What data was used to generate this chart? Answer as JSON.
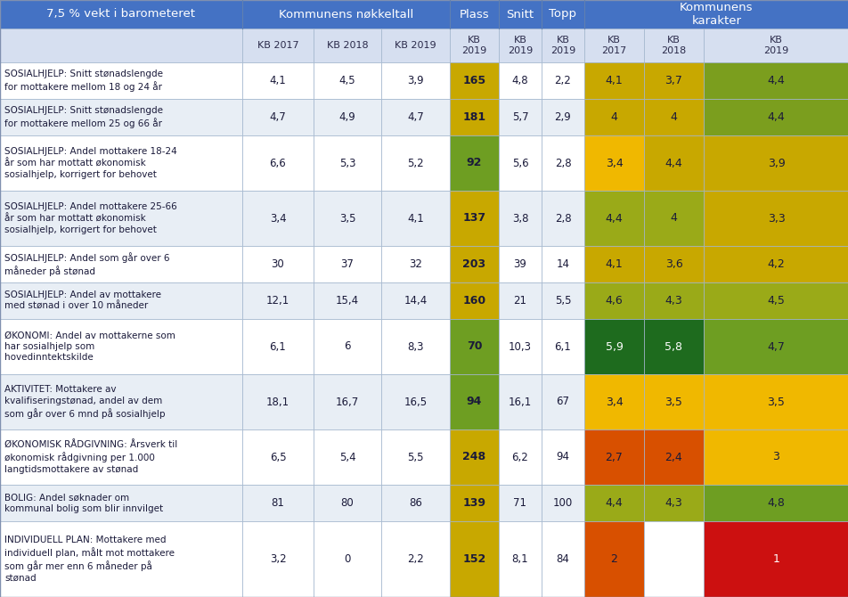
{
  "header_bg": "#4472C4",
  "header_text": "#FFFFFF",
  "subheader_bg": "#D6DFF0",
  "odd_row_bg": "#FFFFFF",
  "even_row_bg": "#E8EEF5",
  "border_color": "#A0B4CC",
  "rows": [
    {
      "label": "SOSIALHJELP: Snitt stønadslengde\nfor mottakere mellom 18 og 24 år",
      "kb2017": "4,1",
      "kb2018": "4,5",
      "kb2019": "3,9",
      "plass": "165",
      "snitt": "4,8",
      "topp": "2,2",
      "kar2017": "4,1",
      "kar2018": "3,7",
      "kar2019": "4,4",
      "plass_color": "#C8A800",
      "kar2017_color": "#C8A800",
      "kar2018_color": "#C8A800",
      "kar2019_color": "#7B9E1E"
    },
    {
      "label": "SOSIALHJELP: Snitt stønadslengde\nfor mottakere mellom 25 og 66 år",
      "kb2017": "4,7",
      "kb2018": "4,9",
      "kb2019": "4,7",
      "plass": "181",
      "snitt": "5,7",
      "topp": "2,9",
      "kar2017": "4",
      "kar2018": "4",
      "kar2019": "4,4",
      "plass_color": "#C8A800",
      "kar2017_color": "#C8A800",
      "kar2018_color": "#C8A800",
      "kar2019_color": "#7B9E1E"
    },
    {
      "label": "SOSIALHJELP: Andel mottakere 18-24\når som har mottatt økonomisk\nsosialhjelp, korrigert for behovet",
      "kb2017": "6,6",
      "kb2018": "5,3",
      "kb2019": "5,2",
      "plass": "92",
      "snitt": "5,6",
      "topp": "2,8",
      "kar2017": "3,4",
      "kar2018": "4,4",
      "kar2019": "3,9",
      "plass_color": "#6E9E22",
      "kar2017_color": "#F0B800",
      "kar2018_color": "#C8A800",
      "kar2019_color": "#C8A800"
    },
    {
      "label": "SOSIALHJELP: Andel mottakere 25-66\når som har mottatt økonomisk\nsosialhjelp, korrigert for behovet",
      "kb2017": "3,4",
      "kb2018": "3,5",
      "kb2019": "4,1",
      "plass": "137",
      "snitt": "3,8",
      "topp": "2,8",
      "kar2017": "4,4",
      "kar2018": "4",
      "kar2019": "3,3",
      "plass_color": "#C8A800",
      "kar2017_color": "#9AAA18",
      "kar2018_color": "#9AAA18",
      "kar2019_color": "#C8A800"
    },
    {
      "label": "SOSIALHJELP: Andel som går over 6\nmåneder på stønad",
      "kb2017": "30",
      "kb2018": "37",
      "kb2019": "32",
      "plass": "203",
      "snitt": "39",
      "topp": "14",
      "kar2017": "4,1",
      "kar2018": "3,6",
      "kar2019": "4,2",
      "plass_color": "#C8A800",
      "kar2017_color": "#C8A800",
      "kar2018_color": "#C8A800",
      "kar2019_color": "#C8A800"
    },
    {
      "label": "SOSIALHJELP: Andel av mottakere\nmed stønad i over 10 måneder",
      "kb2017": "12,1",
      "kb2018": "15,4",
      "kb2019": "14,4",
      "plass": "160",
      "snitt": "21",
      "topp": "5,5",
      "kar2017": "4,6",
      "kar2018": "4,3",
      "kar2019": "4,5",
      "plass_color": "#C8A800",
      "kar2017_color": "#9AAA18",
      "kar2018_color": "#9AAA18",
      "kar2019_color": "#9AAA18"
    },
    {
      "label": "ØKONOMI: Andel av mottakerne som\nhar sosialhjelp som\nhovedinntektskilde",
      "kb2017": "6,1",
      "kb2018": "6",
      "kb2019": "8,3",
      "plass": "70",
      "snitt": "10,3",
      "topp": "6,1",
      "kar2017": "5,9",
      "kar2018": "5,8",
      "kar2019": "4,7",
      "plass_color": "#6E9E22",
      "kar2017_color": "#1E6B1E",
      "kar2018_color": "#1E6B1E",
      "kar2019_color": "#6E9E22"
    },
    {
      "label": "AKTIVITET: Mottakere av\nkvalifiseringstønad, andel av dem\nsom går over 6 mnd på sosialhjelp",
      "kb2017": "18,1",
      "kb2018": "16,7",
      "kb2019": "16,5",
      "plass": "94",
      "snitt": "16,1",
      "topp": "67",
      "kar2017": "3,4",
      "kar2018": "3,5",
      "kar2019": "3,5",
      "plass_color": "#6E9E22",
      "kar2017_color": "#F0B800",
      "kar2018_color": "#F0B800",
      "kar2019_color": "#F0B800"
    },
    {
      "label": "ØKONOMISK RÅDGIVNING: Årsverk til\nøkonomisk rådgivning per 1.000\nlangtidsmottakere av stønad",
      "kb2017": "6,5",
      "kb2018": "5,4",
      "kb2019": "5,5",
      "plass": "248",
      "snitt": "6,2",
      "topp": "94",
      "kar2017": "2,7",
      "kar2018": "2,4",
      "kar2019": "3",
      "plass_color": "#C8A800",
      "kar2017_color": "#D85000",
      "kar2018_color": "#D85000",
      "kar2019_color": "#F0B800"
    },
    {
      "label": "BOLIG: Andel søknader om\nkommunal bolig som blir innvilget",
      "kb2017": "81",
      "kb2018": "80",
      "kb2019": "86",
      "plass": "139",
      "snitt": "71",
      "topp": "100",
      "kar2017": "4,4",
      "kar2018": "4,3",
      "kar2019": "4,8",
      "plass_color": "#C8A800",
      "kar2017_color": "#9AAA18",
      "kar2018_color": "#9AAA18",
      "kar2019_color": "#6E9E22"
    },
    {
      "label": "INDIVIDUELL PLAN: Mottakere med\nindividuell plan, målt mot mottakere\nsom går mer enn 6 måneder på\nstønad",
      "kb2017": "3,2",
      "kb2018": "0",
      "kb2019": "2,2",
      "plass": "152",
      "snitt": "8,1",
      "topp": "84",
      "kar2017": "2",
      "kar2018": "",
      "kar2019": "1",
      "plass_color": "#C8A800",
      "kar2017_color": "#D85000",
      "kar2018_color": "#FFFFFF",
      "kar2019_color": "#CC1010"
    }
  ]
}
